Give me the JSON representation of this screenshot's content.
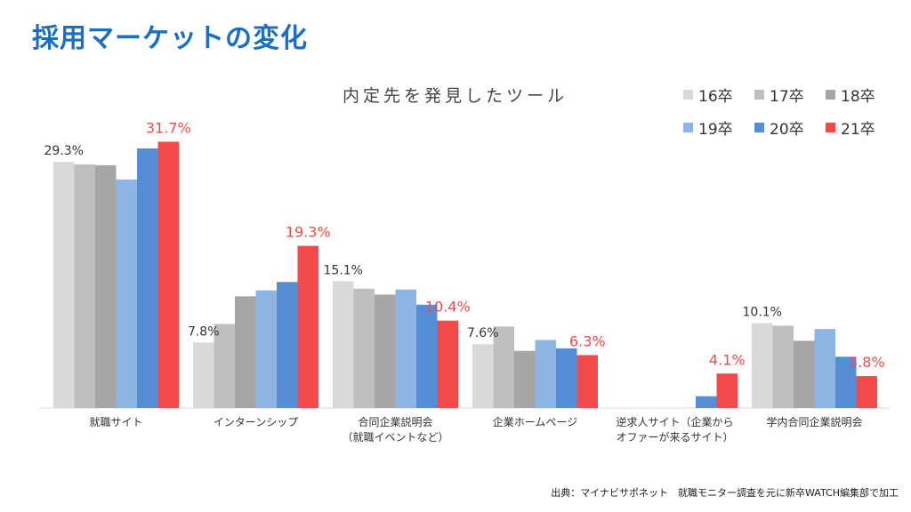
{
  "slide": {
    "title": "採用マーケットの変化",
    "source": "出典：マイナビサポネット　就職モニター調査を元に新卒WATCH編集部で加工"
  },
  "chart_data": {
    "type": "bar",
    "title": "内定先を発見したツール",
    "categories": [
      [
        "就職サイト"
      ],
      [
        "インターンシップ"
      ],
      [
        "合同企業説明会",
        "（就職イベントなど）"
      ],
      [
        "企業ホームページ"
      ],
      [
        "逆求人サイト（企業から",
        "オファーが来るサイト）"
      ],
      [
        "学内合同企業説明会"
      ]
    ],
    "series": [
      {
        "name": "16卒",
        "color": "#d9d9d9",
        "values": [
          29.3,
          7.8,
          15.1,
          7.6,
          0,
          10.1
        ]
      },
      {
        "name": "17卒",
        "color": "#bfbfbf",
        "values": [
          29.0,
          10.0,
          14.2,
          9.7,
          0,
          9.8
        ]
      },
      {
        "name": "18卒",
        "color": "#a6a6a6",
        "values": [
          28.9,
          13.3,
          13.5,
          6.8,
          0,
          8.0
        ]
      },
      {
        "name": "19卒",
        "color": "#8eb4e3",
        "values": [
          27.2,
          14.0,
          14.1,
          8.1,
          0,
          9.4
        ]
      },
      {
        "name": "20卒",
        "color": "#558ed5",
        "values": [
          30.9,
          15.0,
          12.3,
          7.1,
          1.4,
          6.1
        ]
      },
      {
        "name": "21卒",
        "color": "#f24a4a",
        "values": [
          31.7,
          19.3,
          10.4,
          6.3,
          4.1,
          3.8
        ]
      }
    ],
    "data_labels": [
      {
        "series": 0,
        "category": 0,
        "text": "29.3%"
      },
      {
        "series": 5,
        "category": 0,
        "text": "31.7%"
      },
      {
        "series": 0,
        "category": 1,
        "text": "7.8%"
      },
      {
        "series": 5,
        "category": 1,
        "text": "19.3%"
      },
      {
        "series": 0,
        "category": 2,
        "text": "15.1%"
      },
      {
        "series": 5,
        "category": 2,
        "text": "10.4%"
      },
      {
        "series": 0,
        "category": 3,
        "text": "7.6%"
      },
      {
        "series": 5,
        "category": 3,
        "text": "6.3%"
      },
      {
        "series": 5,
        "category": 4,
        "text": "4.1%"
      },
      {
        "series": 0,
        "category": 5,
        "text": "10.1%"
      },
      {
        "series": 5,
        "category": 5,
        "text": "3.8%"
      }
    ],
    "highlight_color": "#f24a4a",
    "ylim": [
      0,
      34
    ],
    "grid": false,
    "legend_position": "top-right"
  }
}
